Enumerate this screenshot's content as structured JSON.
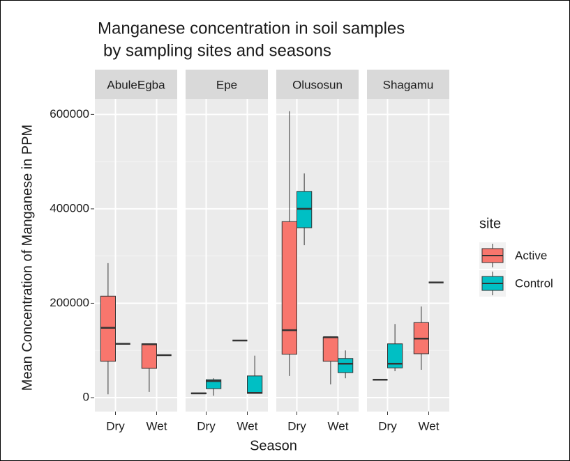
{
  "chart_data": {
    "type": "box",
    "title": [
      "Manganese concentration in soil samples",
      "by sampling sites and seasons"
    ],
    "x_label": "Season",
    "y_label": "Mean Concentration of Manganese in PPM",
    "facets": [
      "AbuleEgba",
      "Epe",
      "Olusosun",
      "Shagamu"
    ],
    "categories": [
      "Dry",
      "Wet"
    ],
    "ylim": [
      -29500,
      633000
    ],
    "yticks": [
      0,
      200000,
      400000,
      600000
    ],
    "grid": true,
    "legend_title": "site",
    "legend_position": "right",
    "series": [
      {
        "name": "Active",
        "color": "#f8766d",
        "boxes": [
          [
            {
              "low": 7000,
              "q1": 77000,
              "median": 148000,
              "q3": 215000,
              "high": 285000
            },
            {
              "low": 12000,
              "q1": 62000,
              "median": 113000,
              "q3": 114000,
              "high": 114000
            }
          ],
          [
            {
              "low": 8000,
              "q1": 8000,
              "median": 9000,
              "q3": 10000,
              "high": 10000
            },
            {
              "low": 121000,
              "q1": 121000,
              "median": 121000,
              "q3": 121000,
              "high": 121000
            }
          ],
          [
            {
              "low": 46000,
              "q1": 92000,
              "median": 143000,
              "q3": 373000,
              "high": 607000
            },
            {
              "low": 28000,
              "q1": 77000,
              "median": 128000,
              "q3": 128000,
              "high": 130000
            }
          ],
          [
            {
              "low": 38000,
              "q1": 38000,
              "median": 38000,
              "q3": 38000,
              "high": 38000
            },
            {
              "low": 59000,
              "q1": 93000,
              "median": 125000,
              "q3": 159000,
              "high": 193000
            }
          ]
        ]
      },
      {
        "name": "Control",
        "color": "#00bfc4",
        "boxes": [
          [
            {
              "low": 114000,
              "q1": 114000,
              "median": 114000,
              "q3": 114000,
              "high": 114000
            },
            {
              "low": 90000,
              "q1": 90000,
              "median": 90000,
              "q3": 90000,
              "high": 90000
            }
          ],
          [
            {
              "low": 4000,
              "q1": 19000,
              "median": 35000,
              "q3": 38000,
              "high": 41000
            },
            {
              "low": 9000,
              "q1": 9000,
              "median": 10000,
              "q3": 46000,
              "high": 89000
            }
          ],
          [
            {
              "low": 323000,
              "q1": 360000,
              "median": 400000,
              "q3": 437000,
              "high": 475000
            },
            {
              "low": 41000,
              "q1": 53000,
              "median": 72000,
              "q3": 83000,
              "high": 100000
            }
          ],
          [
            {
              "low": 56000,
              "q1": 63000,
              "median": 72000,
              "q3": 114000,
              "high": 156000
            },
            {
              "low": 244000,
              "q1": 244000,
              "median": 244000,
              "q3": 244000,
              "high": 244000
            }
          ]
        ]
      }
    ]
  }
}
